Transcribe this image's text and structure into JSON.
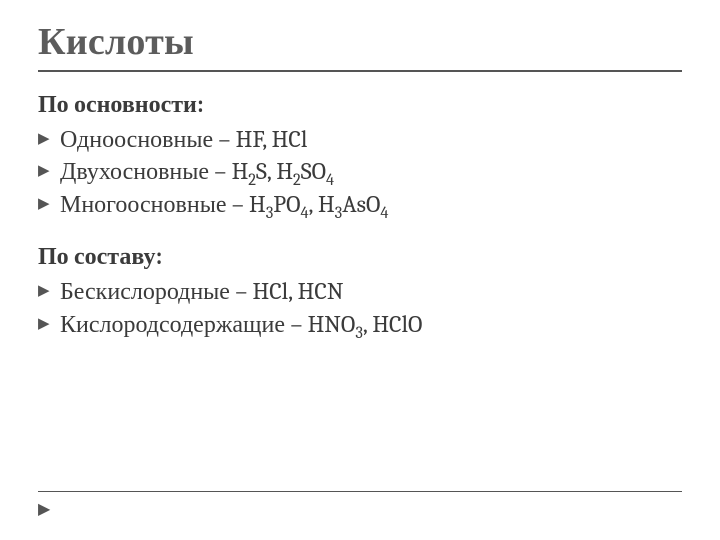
{
  "title": "Кислоты",
  "colors": {
    "title_color": "#5c5c5c",
    "body_color": "#3b3b3b",
    "rule_color": "#555555",
    "background": "#ffffff"
  },
  "typography": {
    "title_fontsize_pt": 28,
    "heading_fontsize_pt": 18,
    "body_fontsize_pt": 18,
    "font_family": "Cambria"
  },
  "sections": [
    {
      "heading": "По основности:",
      "items": [
        {
          "label": "Одноосновные – HF, HCl",
          "html": "Одноосновные – HF, HCl"
        },
        {
          "label": "Двухосновные – H2S, H2SO4",
          "html": "Двухосновные – H<sub>2</sub>S, H<sub>2</sub>SO<sub>4</sub>"
        },
        {
          "label": "Многоосновные – H3PO4, H3AsO4",
          "html": "Многоосновные – H<sub>3</sub>PO<sub>4</sub>, H<sub>3</sub>AsO<sub>4</sub>"
        }
      ]
    },
    {
      "heading": "По составу:",
      "items": [
        {
          "label": "Бескислородные – HCl, HCN",
          "html": "Бескислородные – HCl, HCN"
        },
        {
          "label": "Кислородсодержащие – HNO3, HClO",
          "html": "Кислородсодержащие – HNO<sub>3</sub>, HClO"
        }
      ]
    }
  ],
  "bullet_glyph": "▶",
  "footer_glyph": "▶"
}
